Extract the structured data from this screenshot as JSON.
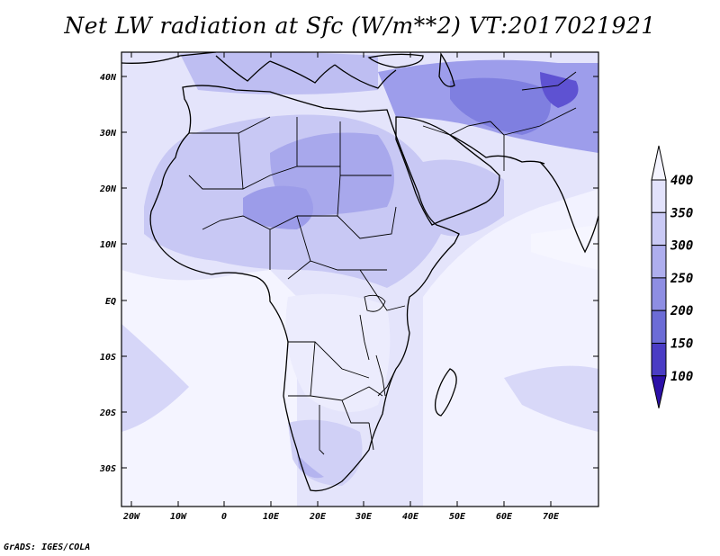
{
  "title": "Net LW radiation at Sfc (W/m**2) VT:2017021921",
  "footer": "GrADS: IGES/COLA",
  "lat_ticks": [
    "40N",
    "30N",
    "20N",
    "10N",
    "EQ",
    "10S",
    "20S",
    "30S"
  ],
  "lon_ticks": [
    "20W",
    "10W",
    "0",
    "10E",
    "20E",
    "30E",
    "40E",
    "50E",
    "60E",
    "70E"
  ],
  "colorbar": {
    "labels": [
      "400",
      "350",
      "300",
      "250",
      "200",
      "150",
      "100"
    ],
    "colors": {
      "above_400": "#f4f4ff",
      "350_400": "#e2e2fb",
      "300_350": "#cacaf5",
      "250_300": "#aeaeee",
      "200_250": "#8e8ee3",
      "150_200": "#6c6cd6",
      "100_150": "#4a3cc4",
      "below_100": "#2c10a8"
    }
  },
  "map": {
    "region": "Africa and Arabian Peninsula",
    "lon_range": [
      -23,
      80
    ],
    "lat_range": [
      -37,
      45
    ],
    "variable": "Net LW radiation at Sfc",
    "units": "W/m**2",
    "valid_time": "2017021921"
  }
}
